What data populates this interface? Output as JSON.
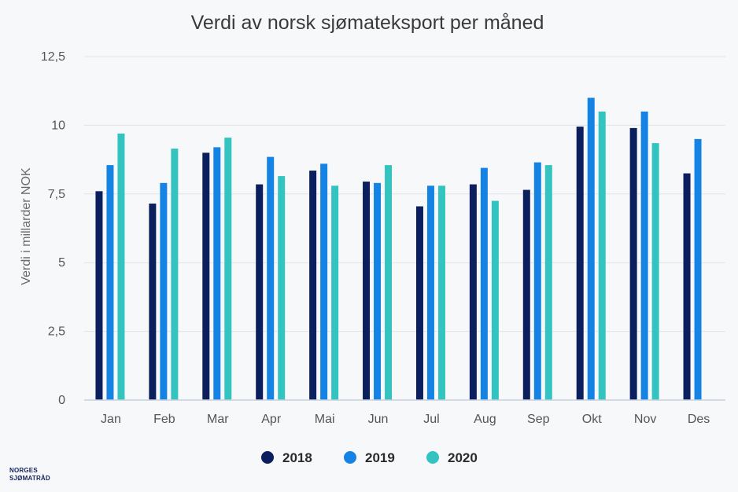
{
  "chart_data": {
    "type": "bar",
    "title": "Verdi av norsk sjømateksport per måned",
    "ylabel": "Verdi i millarder NOK",
    "xlabel": "",
    "ylim": [
      0,
      12.5
    ],
    "yticks": [
      0,
      2.5,
      5,
      7.5,
      10,
      12.5
    ],
    "ytick_labels": [
      "0",
      "2,5",
      "5",
      "7,5",
      "10",
      "12,5"
    ],
    "categories": [
      "Jan",
      "Feb",
      "Mar",
      "Apr",
      "Mai",
      "Jun",
      "Jul",
      "Aug",
      "Sep",
      "Okt",
      "Nov",
      "Des"
    ],
    "series": [
      {
        "name": "2018",
        "color": "#0b1f5e",
        "values": [
          7.6,
          7.15,
          9.0,
          7.85,
          8.35,
          7.95,
          7.05,
          7.85,
          7.65,
          9.95,
          9.9,
          8.25
        ]
      },
      {
        "name": "2019",
        "color": "#1483e4",
        "values": [
          8.55,
          7.9,
          9.2,
          8.85,
          8.6,
          7.9,
          7.8,
          8.45,
          8.65,
          11.0,
          10.5,
          9.5
        ]
      },
      {
        "name": "2020",
        "color": "#33c3c0",
        "values": [
          9.7,
          9.15,
          9.55,
          8.15,
          7.8,
          8.55,
          7.8,
          7.25,
          8.55,
          10.5,
          9.35,
          null
        ]
      }
    ],
    "grid": true,
    "legend": "bottom-center"
  },
  "logo": {
    "line1": "NORGES",
    "line2": "SJØMATRÅD"
  }
}
